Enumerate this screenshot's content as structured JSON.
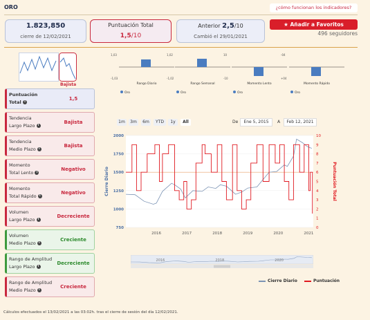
{
  "header": {
    "title": "ORO",
    "how_link": "¿cómo funcionan los indicadores?",
    "fav_button": "Añadir a Favoritos",
    "followers": "496 seguidores"
  },
  "cards": {
    "close_value": "1.823,850",
    "close_date": "cierre de 12/02/2021",
    "score_title": "Puntuación Total",
    "score_value": "1,5",
    "score_suffix": "/10",
    "prev_label": "Anterior",
    "prev_value": "2,5",
    "prev_suffix": "/10",
    "prev_change": "Cambió el 29/01/2021"
  },
  "trend_thumb": {
    "label": "Bajista"
  },
  "mini_charts": [
    {
      "caption": "Rango Diario",
      "legend": "Oro",
      "top": "1,03",
      "bottom": "-1,03",
      "value": 0.55
    },
    {
      "caption": "Rango Semanal",
      "legend": "Oro",
      "top": "1,02",
      "bottom": "-1,02",
      "value": 0.6
    },
    {
      "caption": "Momento Lento",
      "legend": "Oro",
      "top": "10",
      "bottom": "-10",
      "value": -0.65
    },
    {
      "caption": "Momento Rápido",
      "legend": "Oro",
      "top": "-04",
      "bottom": "+04",
      "value": -0.65
    }
  ],
  "indicators": [
    {
      "label_1": "Puntuación",
      "label_2": "Total",
      "value": "1,5",
      "kind": "first"
    },
    {
      "label_1": "Tendencia",
      "label_2": "Largo Plazo",
      "value": "Bajista",
      "kind": "neg"
    },
    {
      "label_1": "Tendencia",
      "label_2": "Medio Plazo",
      "value": "Bajista",
      "kind": "neg"
    },
    {
      "label_1": "Momento",
      "label_2": "Total Lento",
      "value": "Negativo",
      "kind": "neg"
    },
    {
      "label_1": "Momento",
      "label_2": "Total Rápido",
      "value": "Negativo",
      "kind": "neg"
    },
    {
      "label_1": "Volumen",
      "label_2": "Largo Plazo",
      "value": "Decreciente",
      "kind": "neg"
    },
    {
      "label_1": "Volumen",
      "label_2": "Medio Plazo",
      "value": "Creciente",
      "kind": "pos"
    },
    {
      "label_1": "Rango de Amplitud",
      "label_2": "Largo Plazo",
      "value": "Decreciente",
      "kind": "pos"
    },
    {
      "label_1": "Rango de Amplitud",
      "label_2": "Medio Plazo",
      "value": "Creciente",
      "kind": "neg"
    }
  ],
  "range_selector": {
    "buttons": [
      "1m",
      "3m",
      "6m",
      "YTD",
      "1y",
      "All"
    ],
    "selected": "All",
    "from_label": "De",
    "from_value": "Ene 5, 2015",
    "to_label": "A",
    "to_value": "Feb 12, 2021"
  },
  "chart_data": {
    "type": "line",
    "x_ticks": [
      "2016",
      "2017",
      "2018",
      "2019",
      "2020",
      "2021"
    ],
    "ylabel_left": "Cierre Diario",
    "ylabel_right": "Puntuación Total",
    "y_left_ticks": [
      750,
      1000,
      1250,
      1500,
      1750,
      2000
    ],
    "y_right_ticks": [
      0,
      1,
      2,
      3,
      4,
      5,
      6,
      7,
      8,
      9,
      10
    ],
    "ylim_left": [
      750,
      2000
    ],
    "ylim_right": [
      0,
      10
    ],
    "reference_line_left": 1500,
    "series": [
      {
        "name": "Cierre Diario",
        "color": "#7b93b4",
        "axis": "left",
        "x": [
          2015.0,
          2015.3,
          2015.6,
          2015.9,
          2016.0,
          2016.2,
          2016.5,
          2016.6,
          2016.8,
          2016.95,
          2017.2,
          2017.5,
          2017.7,
          2017.95,
          2018.1,
          2018.3,
          2018.6,
          2018.8,
          2019.0,
          2019.3,
          2019.5,
          2019.7,
          2019.95,
          2020.2,
          2020.3,
          2020.5,
          2020.6,
          2020.8,
          2020.95,
          2021.1
        ],
        "y": [
          1200,
          1195,
          1105,
          1065,
          1080,
          1240,
          1350,
          1330,
          1270,
          1150,
          1250,
          1240,
          1300,
          1280,
          1330,
          1310,
          1200,
          1230,
          1285,
          1300,
          1400,
          1500,
          1510,
          1600,
          1580,
          1720,
          1950,
          1900,
          1850,
          1825
        ]
      },
      {
        "name": "Puntuación",
        "color": "#e0181f",
        "axis": "right",
        "x": [
          2015.0,
          2015.2,
          2015.35,
          2015.5,
          2015.7,
          2015.95,
          2016.1,
          2016.2,
          2016.4,
          2016.6,
          2016.75,
          2016.9,
          2017.0,
          2017.15,
          2017.3,
          2017.5,
          2017.6,
          2017.8,
          2018.0,
          2018.15,
          2018.3,
          2018.5,
          2018.65,
          2018.8,
          2018.95,
          2019.1,
          2019.3,
          2019.5,
          2019.7,
          2019.9,
          2020.05,
          2020.2,
          2020.35,
          2020.5,
          2020.7,
          2020.85,
          2021.0,
          2021.05,
          2021.12
        ],
        "y": [
          6,
          9,
          4,
          6,
          8,
          9,
          5,
          8,
          9,
          4,
          3,
          5,
          2,
          3,
          7,
          9,
          8,
          6,
          9,
          5,
          3,
          9,
          4,
          2,
          3,
          7,
          9,
          5,
          9,
          7,
          9,
          5,
          3,
          9,
          6,
          9,
          4,
          6,
          1.5
        ]
      }
    ]
  },
  "navigator": {
    "ticks": [
      "2016",
      "2018",
      "2020"
    ]
  },
  "legend": {
    "series_1": "Cierre Diario",
    "series_2": "Puntuación"
  },
  "footer": "Cálculos efectuados el 13/02/2021 a las 03:02h. tras el cierre de sesión del día 12/02/2021.",
  "colors": {
    "brand_red": "#d91e2a",
    "price_blue": "#7b93b4",
    "score_red": "#e0181f",
    "navy": "#1d2a4a"
  }
}
